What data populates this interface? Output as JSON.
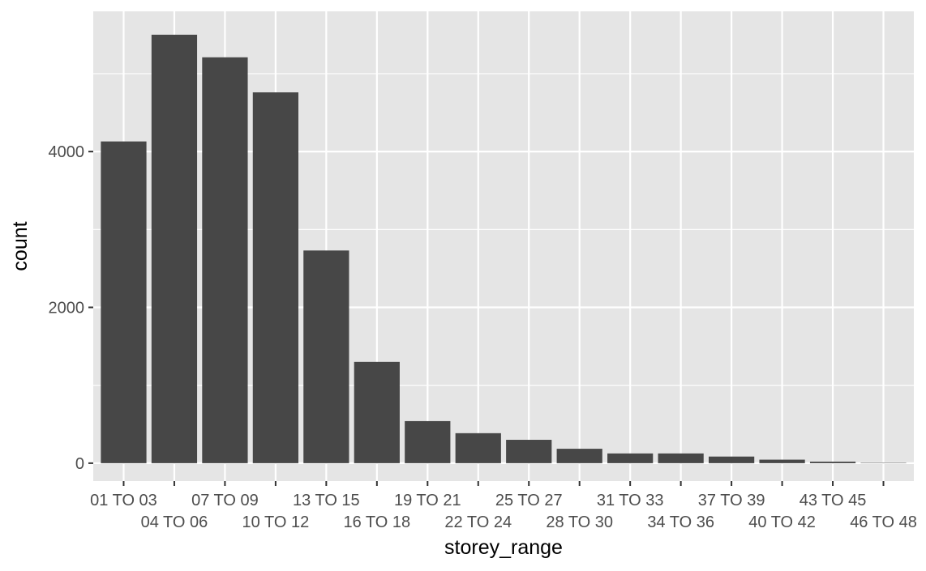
{
  "chart_data": {
    "type": "bar",
    "title": "",
    "xlabel": "storey_range",
    "ylabel": "count",
    "categories": [
      "01 TO 03",
      "04 TO 06",
      "07 TO 09",
      "10 TO 12",
      "13 TO 15",
      "16 TO 18",
      "19 TO 21",
      "22 TO 24",
      "25 TO 27",
      "28 TO 30",
      "31 TO 33",
      "34 TO 36",
      "37 TO 39",
      "40 TO 42",
      "43 TO 45",
      "46 TO 48"
    ],
    "values": [
      4130,
      5500,
      5210,
      4760,
      2730,
      1300,
      540,
      385,
      300,
      185,
      125,
      125,
      85,
      45,
      20,
      5
    ],
    "ylim": [
      -230,
      5800
    ],
    "yticks": [
      0,
      2000,
      4000
    ],
    "ytick_labels": [
      "0",
      "2000",
      "4000"
    ],
    "grid": true,
    "colors": {
      "panel": "#e5e5e5",
      "grid": "#ffffff",
      "bar": "#474747",
      "tick": "#333333",
      "tick_label": "#4d4d4d"
    }
  }
}
